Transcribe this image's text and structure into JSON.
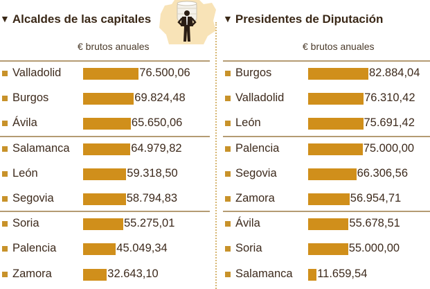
{
  "chart_data": [
    {
      "type": "bar",
      "orientation": "horizontal",
      "title": "Alcaldes de las capitales",
      "subtitle": "€ brutos anuales",
      "categories": [
        "Valladolid",
        "Burgos",
        "Ávila",
        "Salamanca",
        "León",
        "Segovia",
        "Soria",
        "Palencia",
        "Zamora"
      ],
      "values": [
        76500.06,
        69824.48,
        65650.06,
        64979.82,
        59318.5,
        58794.83,
        55275.01,
        45049.34,
        32643.1
      ],
      "value_labels": [
        "76.500,06",
        "69.824,48",
        "65.650,06",
        "64.979,82",
        "59.318,50",
        "58.794,83",
        "55.275,01",
        "45.049,34",
        "32.643,10"
      ],
      "group_size": 3,
      "xlim": [
        0,
        85000
      ],
      "color": "#d08f1b"
    },
    {
      "type": "bar",
      "orientation": "horizontal",
      "title": "Presidentes de Diputación",
      "subtitle": "€ brutos anuales",
      "categories": [
        "Burgos",
        "Valladolid",
        "León",
        "Palencia",
        "Segovia",
        "Zamora",
        "Ávila",
        "Soria",
        "Salamanca"
      ],
      "values": [
        82884.04,
        76310.42,
        75691.42,
        75000.0,
        66306.56,
        56954.71,
        55678.51,
        55000.0,
        11659.54
      ],
      "value_labels": [
        "82.884,04",
        "76.310,42",
        "75.691,42",
        "75.000,00",
        "66.306,56",
        "56.954,71",
        "55.678,51",
        "55.000,00",
        "11.659,54"
      ],
      "group_size": 3,
      "xlim": [
        0,
        85000
      ],
      "color": "#d08f1b"
    }
  ],
  "icons": {
    "heading_marker": "▼",
    "emblem": "man-with-coin-stack-on-map"
  }
}
